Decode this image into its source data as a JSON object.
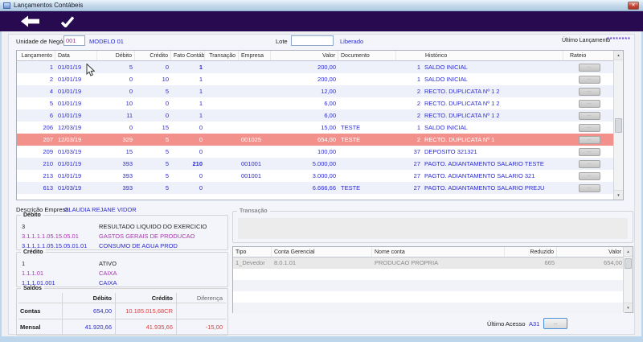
{
  "window": {
    "title": "Lançamentos Contábeis"
  },
  "icons": {
    "close": "✕",
    "scroll_up": "▲",
    "scroll_down": "▼"
  },
  "colors": {
    "toolbar_purple": "#280a51",
    "selected_row": "#f2918b",
    "data_blue": "#2a2ad2",
    "account_purple": "#a935ae",
    "negative_red": "#e03e3e",
    "titlebar_blue": "#c3d8ea"
  },
  "form": {
    "unidade_label": "Unidade de Negócio",
    "unidade_value": "001",
    "unidade_name": "MODELO 01",
    "lote_label": "Lote",
    "lote_value": "",
    "status_text": "Liberado",
    "ultimo_lancamento_label": "Último Lançamento",
    "ultimo_lancamento_value": "********"
  },
  "grid": {
    "columns": {
      "lancamento": "Lançamento",
      "data": "Data",
      "debito": "Débito",
      "credito": "Crédito",
      "fato": "Fato Contábil",
      "transacao": "Transação",
      "empresa": "Empresa",
      "valor": "Valor",
      "documento": "Documento",
      "historico": "Histórico",
      "rateio": "Rateio"
    },
    "rateio_button_label": "...",
    "selected_index": 6,
    "rows": [
      {
        "lancamento": "1",
        "data": "01/01/19",
        "debito": "5",
        "credito": "0",
        "fato": "1",
        "fato_bold": true,
        "empresa": "",
        "valor": "200,00",
        "documento": "",
        "hist_code": "1",
        "historico": "SALDO INICIAL"
      },
      {
        "lancamento": "2",
        "data": "01/01/19",
        "debito": "0",
        "credito": "10",
        "fato": "1",
        "fato_bold": false,
        "empresa": "",
        "valor": "200,00",
        "documento": "",
        "hist_code": "1",
        "historico": "SALDO INICIAL"
      },
      {
        "lancamento": "4",
        "data": "01/01/19",
        "debito": "0",
        "credito": "5",
        "fato": "1",
        "fato_bold": false,
        "empresa": "",
        "valor": "12,00",
        "documento": "",
        "hist_code": "2",
        "historico": "RECTO. DUPLICATA Nº 1 2"
      },
      {
        "lancamento": "5",
        "data": "01/01/19",
        "debito": "10",
        "credito": "0",
        "fato": "1",
        "fato_bold": false,
        "empresa": "",
        "valor": "6,00",
        "documento": "",
        "hist_code": "2",
        "historico": "RECTO. DUPLICATA Nº 1 2"
      },
      {
        "lancamento": "6",
        "data": "01/01/19",
        "debito": "11",
        "credito": "0",
        "fato": "1",
        "fato_bold": false,
        "empresa": "",
        "valor": "6,00",
        "documento": "",
        "hist_code": "2",
        "historico": "RECTO. DUPLICATA Nº 1 2"
      },
      {
        "lancamento": "206",
        "data": "12/03/19",
        "debito": "0",
        "credito": "15",
        "fato": "0",
        "fato_bold": false,
        "empresa": "",
        "valor": "15,00",
        "documento": "TESTE",
        "hist_code": "1",
        "historico": "SALDO INICIAL"
      },
      {
        "lancamento": "207",
        "data": "12/03/19",
        "debito": "329",
        "credito": "5",
        "fato": "0",
        "fato_bold": false,
        "empresa": "001025",
        "valor": "654,00",
        "documento": "TESTE",
        "hist_code": "2",
        "historico": "RECTO. DUPLICATA Nº 1"
      },
      {
        "lancamento": "209",
        "data": "01/03/19",
        "debito": "15",
        "credito": "5",
        "fato": "0",
        "fato_bold": false,
        "empresa": "",
        "valor": "100,00",
        "documento": "",
        "hist_code": "37",
        "historico": "DEPOSITO 321321"
      },
      {
        "lancamento": "210",
        "data": "01/01/19",
        "debito": "393",
        "credito": "5",
        "fato": "210",
        "fato_bold": true,
        "empresa": "001001",
        "valor": "5.000,00",
        "documento": "",
        "hist_code": "27",
        "historico": "PAGTO. ADIANTAMENTO SALARIO TESTE"
      },
      {
        "lancamento": "213",
        "data": "01/01/19",
        "debito": "393",
        "credito": "5",
        "fato": "0",
        "fato_bold": false,
        "empresa": "001001",
        "valor": "3.000,00",
        "documento": "",
        "hist_code": "27",
        "historico": "PAGTO. ADIANTAMENTO SALARIO 321"
      },
      {
        "lancamento": "613",
        "data": "01/03/19",
        "debito": "393",
        "credito": "5",
        "fato": "0",
        "fato_bold": false,
        "empresa": "",
        "valor": "6.666,66",
        "documento": "TESTE",
        "hist_code": "27",
        "historico": "PAGTO. ADIANTAMENTO SALARIO PREJU"
      }
    ]
  },
  "empresa_section": {
    "label": "Descrição Empresa",
    "value": "CLAUDIA REJANE VIDOR"
  },
  "debito_box": {
    "title": "Débito",
    "accounts": [
      {
        "code": "3",
        "name": "RESULTADO LIQUIDO DO EXERCICIO",
        "level": "root"
      },
      {
        "code": "3.1.1.1.1.05.15.05.01",
        "name": "GASTOS GERAIS DE PRODUCAO",
        "level": "group"
      },
      {
        "code": "3.1.1.1.1.05.15.05.01.01",
        "name": "CONSUMO DE AGUA PROD",
        "level": "leaf"
      }
    ]
  },
  "credito_box": {
    "title": "Crédito",
    "accounts": [
      {
        "code": "1",
        "name": "ATIVO",
        "level": "root"
      },
      {
        "code": "1.1.1.01",
        "name": "CAIXA",
        "level": "group"
      },
      {
        "code": "1.1.1.01.001",
        "name": "CAIXA",
        "level": "leaf"
      }
    ]
  },
  "saldos": {
    "title": "Saldos",
    "col_debito": "Débito",
    "col_credito": "Crédito",
    "col_diferenca": "Diferença",
    "rows": [
      {
        "label": "Contas",
        "debito": "654,00",
        "credito": "10.185.015,68CR",
        "diferenca": ""
      },
      {
        "label": "Mensal",
        "debito": "41.920,66",
        "credito": "41.935,66",
        "diferenca": "-15,00"
      }
    ]
  },
  "transacao": {
    "title": "Transação",
    "columns": [
      "Tipo",
      "Conta Gerencial",
      "Nome conta",
      "Reduzido",
      "Valor"
    ],
    "rows": [
      [
        "1_Devedor",
        "8.0.1.01",
        "PRODUCAO PROPRIA",
        "665",
        "654,00"
      ]
    ],
    "empty_row_count": 4
  },
  "footer": {
    "ultimo_acesso_label": "Último Acesso",
    "ultimo_acesso_value": "A31",
    "button_label": "..."
  }
}
